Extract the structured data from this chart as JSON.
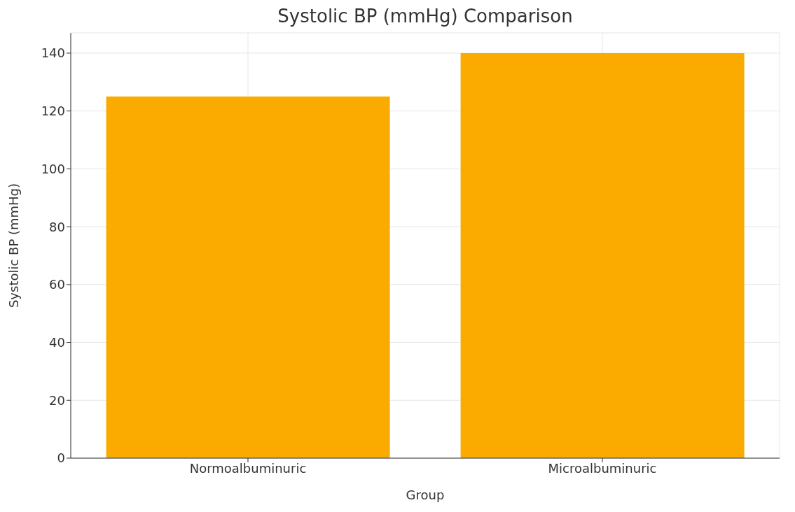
{
  "chart_data": {
    "type": "bar",
    "title": "Systolic BP (mmHg) Comparison",
    "xlabel": "Group",
    "ylabel": "Systolic BP (mmHg)",
    "categories": [
      "Normoalbuminuric",
      "Microalbuminuric"
    ],
    "values": [
      125,
      140
    ],
    "color": "#fbab00",
    "ylim": [
      0,
      147
    ],
    "yticks": [
      0,
      20,
      40,
      60,
      80,
      100,
      120,
      140
    ],
    "grid": true
  }
}
